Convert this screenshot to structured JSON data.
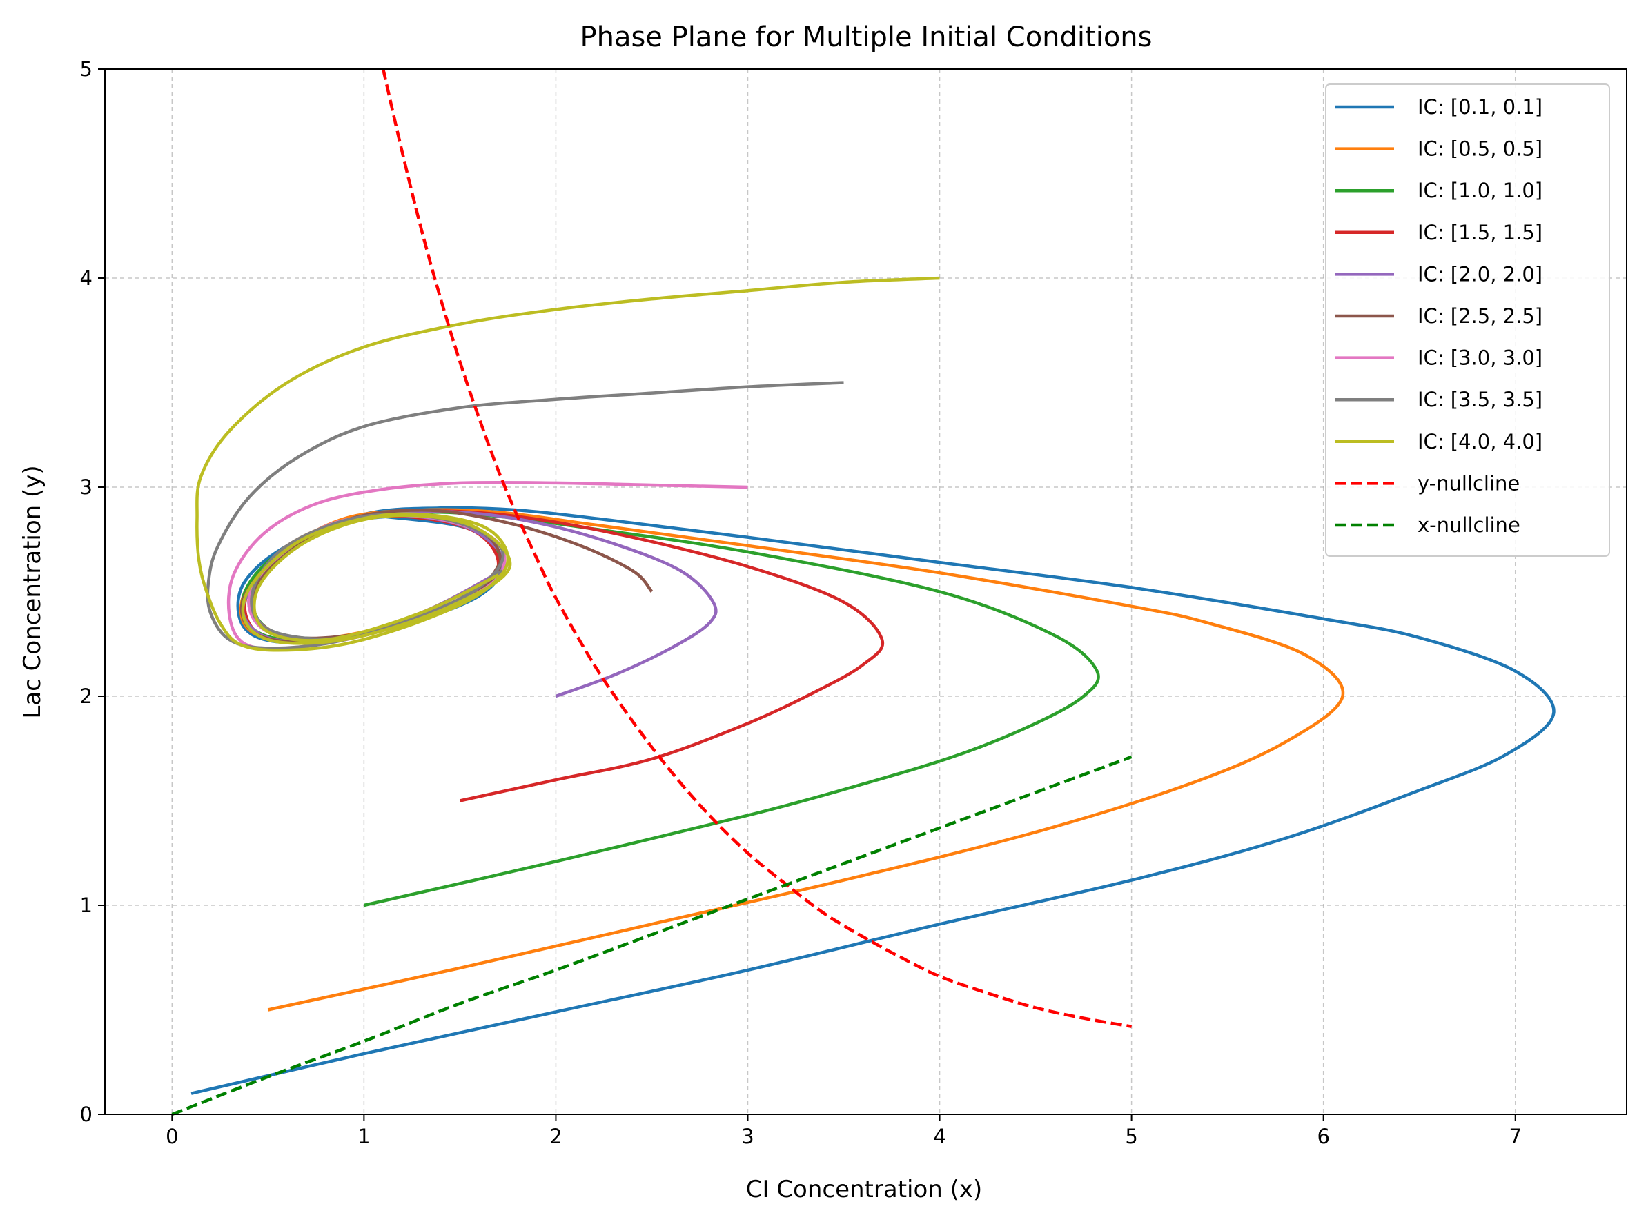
{
  "chart_data": {
    "type": "line",
    "title": "Phase Plane for Multiple Initial Conditions",
    "xlabel": "CI Concentration (x)",
    "ylabel": "Lac Concentration (y)",
    "xlim": [
      -0.35,
      7.58
    ],
    "ylim": [
      0,
      5
    ],
    "xticks": [
      0,
      1,
      2,
      3,
      4,
      5,
      6,
      7
    ],
    "yticks": [
      0,
      1,
      2,
      3,
      4,
      5
    ],
    "grid": true,
    "legend_position": "upper right",
    "series": [
      {
        "name": "IC: [0.1, 0.1]",
        "color": "#1f77b4",
        "style": "solid",
        "points": [
          [
            0.1,
            0.1
          ],
          [
            1.0,
            0.29
          ],
          [
            2.0,
            0.49
          ],
          [
            3.0,
            0.69
          ],
          [
            4.0,
            0.91
          ],
          [
            5.0,
            1.12
          ],
          [
            5.8,
            1.32
          ],
          [
            6.5,
            1.55
          ],
          [
            6.95,
            1.72
          ],
          [
            7.2,
            1.92
          ],
          [
            7.0,
            2.12
          ],
          [
            6.5,
            2.28
          ],
          [
            6.0,
            2.37
          ],
          [
            5.0,
            2.52
          ],
          [
            4.0,
            2.64
          ],
          [
            3.0,
            2.76
          ],
          [
            2.3,
            2.84
          ],
          [
            1.8,
            2.89
          ],
          [
            1.4,
            2.9
          ],
          [
            1.0,
            2.87
          ],
          [
            0.6,
            2.72
          ],
          [
            0.38,
            2.55
          ],
          [
            0.35,
            2.38
          ],
          [
            0.45,
            2.28
          ],
          [
            0.7,
            2.26
          ],
          [
            1.1,
            2.33
          ],
          [
            1.5,
            2.46
          ],
          [
            1.7,
            2.62
          ],
          [
            1.6,
            2.78
          ],
          [
            1.2,
            2.86
          ],
          [
            0.8,
            2.8
          ],
          [
            0.5,
            2.62
          ],
          [
            0.4,
            2.45
          ],
          [
            0.5,
            2.32
          ],
          [
            0.8,
            2.27
          ],
          [
            1.2,
            2.34
          ],
          [
            1.6,
            2.48
          ],
          [
            1.72,
            2.64
          ],
          [
            1.55,
            2.8
          ],
          [
            1.1,
            2.86
          ]
        ]
      },
      {
        "name": "IC: [0.5, 0.5]",
        "color": "#ff7f0e",
        "style": "solid",
        "points": [
          [
            0.5,
            0.5
          ],
          [
            1.5,
            0.7
          ],
          [
            2.5,
            0.91
          ],
          [
            3.5,
            1.12
          ],
          [
            4.5,
            1.35
          ],
          [
            5.3,
            1.58
          ],
          [
            5.8,
            1.78
          ],
          [
            6.1,
            2.0
          ],
          [
            5.9,
            2.2
          ],
          [
            5.4,
            2.35
          ],
          [
            5.0,
            2.43
          ],
          [
            4.0,
            2.59
          ],
          [
            3.0,
            2.72
          ],
          [
            2.2,
            2.82
          ],
          [
            1.7,
            2.88
          ],
          [
            1.3,
            2.89
          ],
          [
            0.9,
            2.85
          ],
          [
            0.55,
            2.68
          ],
          [
            0.38,
            2.5
          ],
          [
            0.38,
            2.34
          ],
          [
            0.55,
            2.27
          ],
          [
            0.9,
            2.29
          ],
          [
            1.3,
            2.39
          ],
          [
            1.62,
            2.53
          ],
          [
            1.7,
            2.7
          ],
          [
            1.45,
            2.83
          ],
          [
            1.0,
            2.86
          ],
          [
            0.6,
            2.72
          ],
          [
            0.42,
            2.5
          ],
          [
            0.5,
            2.32
          ],
          [
            0.85,
            2.28
          ],
          [
            1.3,
            2.4
          ],
          [
            1.68,
            2.58
          ]
        ]
      },
      {
        "name": "IC: [1.0, 1.0]",
        "color": "#2ca02c",
        "style": "solid",
        "points": [
          [
            1.0,
            1.0
          ],
          [
            2.0,
            1.21
          ],
          [
            3.0,
            1.43
          ],
          [
            3.6,
            1.58
          ],
          [
            4.1,
            1.72
          ],
          [
            4.5,
            1.87
          ],
          [
            4.75,
            2.0
          ],
          [
            4.82,
            2.12
          ],
          [
            4.6,
            2.29
          ],
          [
            4.0,
            2.5
          ],
          [
            3.0,
            2.69
          ],
          [
            2.2,
            2.8
          ],
          [
            1.7,
            2.86
          ],
          [
            1.3,
            2.88
          ],
          [
            0.9,
            2.84
          ],
          [
            0.55,
            2.68
          ],
          [
            0.38,
            2.5
          ],
          [
            0.4,
            2.34
          ],
          [
            0.6,
            2.27
          ],
          [
            1.0,
            2.3
          ],
          [
            1.4,
            2.42
          ],
          [
            1.68,
            2.57
          ],
          [
            1.65,
            2.75
          ],
          [
            1.35,
            2.85
          ],
          [
            0.9,
            2.84
          ],
          [
            0.55,
            2.66
          ],
          [
            0.42,
            2.45
          ],
          [
            0.55,
            2.3
          ],
          [
            0.95,
            2.29
          ],
          [
            1.45,
            2.44
          ]
        ]
      },
      {
        "name": "IC: [1.5, 1.5]",
        "color": "#d62728",
        "style": "solid",
        "points": [
          [
            1.5,
            1.5
          ],
          [
            2.0,
            1.6
          ],
          [
            2.5,
            1.7
          ],
          [
            3.0,
            1.87
          ],
          [
            3.35,
            2.02
          ],
          [
            3.6,
            2.15
          ],
          [
            3.7,
            2.27
          ],
          [
            3.5,
            2.45
          ],
          [
            3.0,
            2.62
          ],
          [
            2.3,
            2.78
          ],
          [
            1.7,
            2.87
          ],
          [
            1.2,
            2.88
          ],
          [
            0.8,
            2.8
          ],
          [
            0.5,
            2.62
          ],
          [
            0.38,
            2.45
          ],
          [
            0.45,
            2.3
          ],
          [
            0.7,
            2.26
          ],
          [
            1.1,
            2.32
          ],
          [
            1.5,
            2.45
          ],
          [
            1.7,
            2.62
          ],
          [
            1.55,
            2.8
          ],
          [
            1.1,
            2.86
          ],
          [
            0.7,
            2.76
          ],
          [
            0.45,
            2.55
          ],
          [
            0.45,
            2.36
          ],
          [
            0.7,
            2.27
          ],
          [
            1.15,
            2.33
          ],
          [
            1.6,
            2.5
          ]
        ]
      },
      {
        "name": "IC: [2.0, 2.0]",
        "color": "#9467bd",
        "style": "solid",
        "points": [
          [
            2.0,
            2.0
          ],
          [
            2.3,
            2.1
          ],
          [
            2.6,
            2.23
          ],
          [
            2.8,
            2.35
          ],
          [
            2.82,
            2.45
          ],
          [
            2.65,
            2.6
          ],
          [
            2.3,
            2.73
          ],
          [
            1.9,
            2.83
          ],
          [
            1.5,
            2.88
          ],
          [
            1.1,
            2.87
          ],
          [
            0.7,
            2.76
          ],
          [
            0.45,
            2.56
          ],
          [
            0.37,
            2.4
          ],
          [
            0.5,
            2.28
          ],
          [
            0.8,
            2.27
          ],
          [
            1.2,
            2.35
          ],
          [
            1.58,
            2.5
          ],
          [
            1.72,
            2.66
          ],
          [
            1.5,
            2.82
          ],
          [
            1.05,
            2.86
          ],
          [
            0.65,
            2.72
          ],
          [
            0.43,
            2.5
          ],
          [
            0.5,
            2.32
          ],
          [
            0.85,
            2.28
          ],
          [
            1.3,
            2.4
          ],
          [
            1.68,
            2.58
          ]
        ]
      },
      {
        "name": "IC: [2.5, 2.5]",
        "color": "#8c564b",
        "style": "solid",
        "points": [
          [
            2.5,
            2.5
          ],
          [
            2.4,
            2.6
          ],
          [
            2.1,
            2.73
          ],
          [
            1.7,
            2.84
          ],
          [
            1.3,
            2.89
          ],
          [
            0.9,
            2.84
          ],
          [
            0.55,
            2.66
          ],
          [
            0.37,
            2.46
          ],
          [
            0.42,
            2.31
          ],
          [
            0.65,
            2.26
          ],
          [
            1.05,
            2.31
          ],
          [
            1.45,
            2.44
          ],
          [
            1.7,
            2.6
          ],
          [
            1.62,
            2.78
          ],
          [
            1.2,
            2.87
          ],
          [
            0.78,
            2.78
          ],
          [
            0.48,
            2.58
          ],
          [
            0.43,
            2.38
          ],
          [
            0.65,
            2.28
          ],
          [
            1.1,
            2.32
          ],
          [
            1.55,
            2.47
          ],
          [
            1.72,
            2.65
          ]
        ]
      },
      {
        "name": "IC: [3.0, 3.0]",
        "color": "#e377c2",
        "style": "solid",
        "points": [
          [
            3.0,
            3.0
          ],
          [
            2.5,
            3.01
          ],
          [
            2.0,
            3.02
          ],
          [
            1.5,
            3.02
          ],
          [
            1.1,
            2.99
          ],
          [
            0.75,
            2.92
          ],
          [
            0.48,
            2.78
          ],
          [
            0.32,
            2.58
          ],
          [
            0.3,
            2.38
          ],
          [
            0.38,
            2.25
          ],
          [
            0.6,
            2.23
          ],
          [
            1.0,
            2.29
          ],
          [
            1.4,
            2.41
          ],
          [
            1.7,
            2.57
          ],
          [
            1.68,
            2.75
          ],
          [
            1.3,
            2.86
          ],
          [
            0.85,
            2.83
          ],
          [
            0.52,
            2.64
          ],
          [
            0.4,
            2.45
          ],
          [
            0.52,
            2.3
          ],
          [
            0.9,
            2.28
          ],
          [
            1.4,
            2.42
          ],
          [
            1.72,
            2.6
          ]
        ]
      },
      {
        "name": "IC: [3.5, 3.5]",
        "color": "#7f7f7f",
        "style": "solid",
        "points": [
          [
            3.5,
            3.5
          ],
          [
            3.0,
            3.48
          ],
          [
            2.5,
            3.45
          ],
          [
            2.0,
            3.42
          ],
          [
            1.5,
            3.38
          ],
          [
            1.0,
            3.29
          ],
          [
            0.65,
            3.14
          ],
          [
            0.4,
            2.95
          ],
          [
            0.24,
            2.72
          ],
          [
            0.19,
            2.55
          ],
          [
            0.2,
            2.4
          ],
          [
            0.3,
            2.27
          ],
          [
            0.5,
            2.23
          ],
          [
            0.85,
            2.26
          ],
          [
            1.25,
            2.37
          ],
          [
            1.6,
            2.52
          ],
          [
            1.72,
            2.7
          ],
          [
            1.45,
            2.84
          ],
          [
            1.0,
            2.86
          ],
          [
            0.6,
            2.72
          ],
          [
            0.42,
            2.5
          ],
          [
            0.5,
            2.32
          ],
          [
            0.9,
            2.28
          ],
          [
            1.4,
            2.42
          ],
          [
            1.72,
            2.6
          ]
        ]
      },
      {
        "name": "IC: [4.0, 4.0]",
        "color": "#bcbd22",
        "style": "solid",
        "points": [
          [
            4.0,
            4.0
          ],
          [
            3.5,
            3.98
          ],
          [
            3.0,
            3.94
          ],
          [
            2.5,
            3.9
          ],
          [
            2.0,
            3.85
          ],
          [
            1.5,
            3.78
          ],
          [
            1.0,
            3.67
          ],
          [
            0.6,
            3.5
          ],
          [
            0.3,
            3.27
          ],
          [
            0.15,
            3.05
          ],
          [
            0.13,
            2.85
          ],
          [
            0.14,
            2.65
          ],
          [
            0.18,
            2.5
          ],
          [
            0.25,
            2.35
          ],
          [
            0.35,
            2.25
          ],
          [
            0.55,
            2.22
          ],
          [
            0.9,
            2.25
          ],
          [
            1.3,
            2.36
          ],
          [
            1.62,
            2.5
          ],
          [
            1.75,
            2.66
          ],
          [
            1.6,
            2.82
          ],
          [
            1.15,
            2.87
          ],
          [
            0.7,
            2.76
          ],
          [
            0.42,
            2.54
          ],
          [
            0.38,
            2.36
          ],
          [
            0.55,
            2.26
          ],
          [
            0.95,
            2.28
          ],
          [
            1.45,
            2.43
          ],
          [
            1.76,
            2.62
          ],
          [
            1.55,
            2.82
          ],
          [
            1.1,
            2.86
          ],
          [
            0.7,
            2.74
          ],
          [
            0.45,
            2.52
          ],
          [
            0.48,
            2.32
          ],
          [
            0.8,
            2.27
          ],
          [
            1.3,
            2.4
          ],
          [
            1.7,
            2.58
          ]
        ]
      },
      {
        "name": "y-nullcline",
        "color": "#ff0000",
        "style": "dashed",
        "points": [
          [
            1.1,
            5.0
          ],
          [
            1.2,
            4.6
          ],
          [
            1.3,
            4.23
          ],
          [
            1.4,
            3.9
          ],
          [
            1.5,
            3.6
          ],
          [
            1.6,
            3.33
          ],
          [
            1.7,
            3.08
          ],
          [
            1.8,
            2.86
          ],
          [
            1.9,
            2.66
          ],
          [
            2.0,
            2.47
          ],
          [
            2.2,
            2.15
          ],
          [
            2.4,
            1.88
          ],
          [
            2.6,
            1.64
          ],
          [
            2.8,
            1.43
          ],
          [
            3.0,
            1.25
          ],
          [
            3.2,
            1.1
          ],
          [
            3.4,
            0.96
          ],
          [
            3.6,
            0.85
          ],
          [
            3.8,
            0.75
          ],
          [
            4.0,
            0.66
          ],
          [
            4.25,
            0.58
          ],
          [
            4.5,
            0.51
          ],
          [
            4.75,
            0.46
          ],
          [
            5.0,
            0.42
          ]
        ]
      },
      {
        "name": "x-nullcline",
        "color": "#008000",
        "style": "dashed",
        "points": [
          [
            0.0,
            0.0
          ],
          [
            0.5,
            0.18
          ],
          [
            1.0,
            0.35
          ],
          [
            1.5,
            0.53
          ],
          [
            2.0,
            0.69
          ],
          [
            2.5,
            0.86
          ],
          [
            3.0,
            1.03
          ],
          [
            3.5,
            1.2
          ],
          [
            4.0,
            1.37
          ],
          [
            4.5,
            1.54
          ],
          [
            5.0,
            1.71
          ]
        ]
      }
    ]
  }
}
